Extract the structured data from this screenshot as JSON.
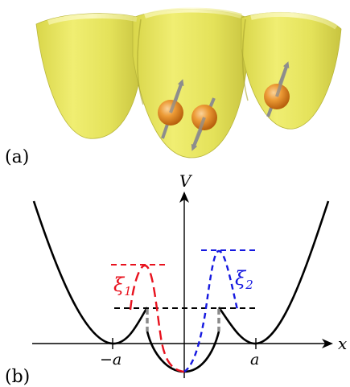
{
  "panel_a": {
    "label": "(a)"
  },
  "panel_b": {
    "label": "(b)",
    "y_axis_label": "V",
    "x_axis_label": "x",
    "tick_left": "−a",
    "tick_right": "a",
    "xi1": {
      "symbol": "ξ",
      "subscript": "1",
      "color": "#e8121e"
    },
    "xi2": {
      "symbol": "ξ",
      "subscript": "2",
      "color": "#1518e0"
    }
  },
  "colors": {
    "well_surface": "#ecea62",
    "atom": "#e38a1c",
    "spin_arrow": "#8d8d8d",
    "potential": "#000000",
    "dashed_gray": "#8a8a8a"
  }
}
